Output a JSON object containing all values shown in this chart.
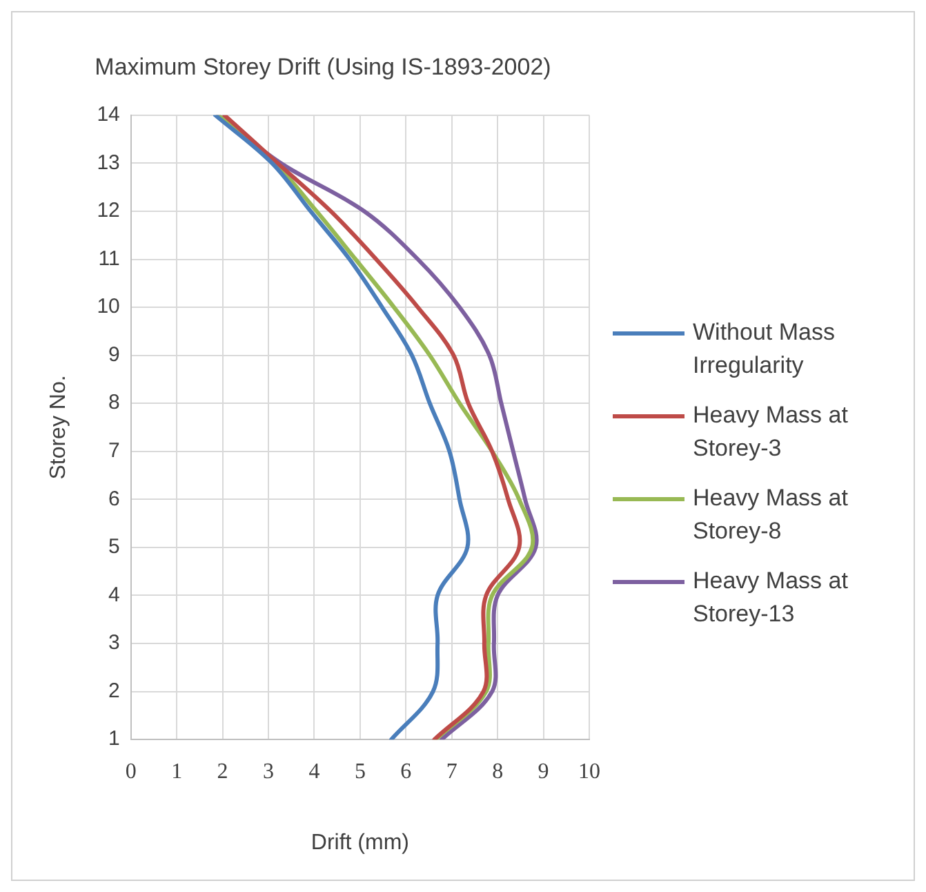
{
  "chart_data": {
    "type": "line",
    "title": "Maximum Storey Drift (Using IS-1893-2002)",
    "xlabel": "Drift (mm)",
    "ylabel": "Storey No.",
    "series": [
      {
        "name": "Without Mass Irregularity",
        "color": "#4a7ebb",
        "x": [
          5.68,
          6.59,
          6.69,
          6.69,
          7.34,
          7.17,
          6.95,
          6.52,
          6.13,
          5.48,
          4.77,
          3.92,
          3.08,
          1.84
        ],
        "values": [
          1,
          2,
          3,
          4,
          5,
          6,
          7,
          8,
          9,
          10,
          11,
          12,
          13,
          14
        ]
      },
      {
        "name": "Heavy Mass at Storey-3",
        "color": "#be4b48",
        "x": [
          6.62,
          7.69,
          7.71,
          7.75,
          8.47,
          8.23,
          7.88,
          7.36,
          7.04,
          6.26,
          5.35,
          4.36,
          3.2,
          2.04
        ],
        "values": [
          1,
          2,
          3,
          4,
          5,
          6,
          7,
          8,
          9,
          10,
          11,
          12,
          13,
          14
        ]
      },
      {
        "name": "Heavy Mass at Storey-8",
        "color": "#98b954",
        "x": [
          6.65,
          7.75,
          7.8,
          7.88,
          8.75,
          8.47,
          7.88,
          7.17,
          6.52,
          5.74,
          4.9,
          4.05,
          3.14,
          1.9
        ],
        "values": [
          1,
          2,
          3,
          4,
          5,
          6,
          7,
          8,
          9,
          10,
          11,
          12,
          13,
          14
        ]
      },
      {
        "name": "Heavy Mass at Storey-13",
        "color": "#7d60a0",
        "x": [
          6.78,
          7.88,
          7.92,
          8.0,
          8.83,
          8.6,
          8.34,
          8.08,
          7.82,
          7.17,
          6.26,
          5.09,
          3.27,
          1.9
        ],
        "values": [
          1,
          2,
          3,
          4,
          5,
          6,
          7,
          8,
          9,
          10,
          11,
          12,
          13,
          14
        ]
      }
    ],
    "xlim": [
      0,
      10
    ],
    "xticks": [
      0,
      1,
      2,
      3,
      4,
      5,
      6,
      7,
      8,
      9,
      10
    ],
    "ylim": [
      1,
      14
    ],
    "yticks": [
      1,
      2,
      3,
      4,
      5,
      6,
      7,
      8,
      9,
      10,
      11,
      12,
      13,
      14
    ],
    "grid": true,
    "legend": "right",
    "marker": "none",
    "line_style": "solid"
  }
}
